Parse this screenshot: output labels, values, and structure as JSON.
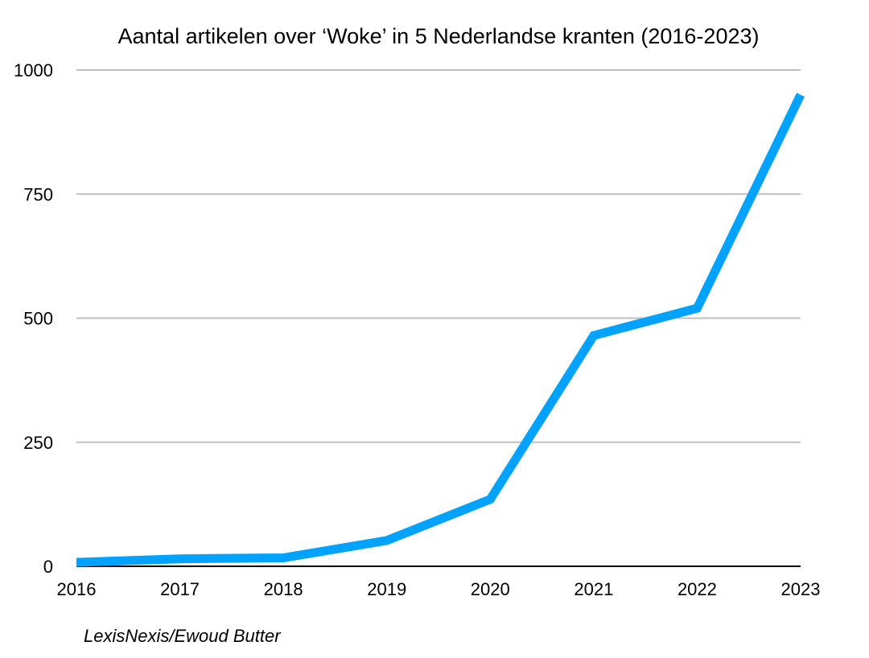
{
  "chart_data": {
    "type": "line",
    "title": "Aantal artikelen over ‘Woke’ in 5 Nederlandse kranten (2016-2023)",
    "xlabel": "",
    "ylabel": "",
    "categories": [
      "2016",
      "2017",
      "2018",
      "2019",
      "2020",
      "2021",
      "2022",
      "2023"
    ],
    "series": [
      {
        "values": [
          8,
          15,
          17,
          52,
          135,
          465,
          520,
          950
        ],
        "color": "#00A2FF"
      }
    ],
    "ylim": [
      0,
      1000
    ],
    "yticks": [
      0,
      250,
      500,
      750,
      1000
    ],
    "grid": true,
    "legend": "none",
    "source": "LexisNexis/Ewoud Butter"
  },
  "colors": {
    "gridline": "#BFBFBF",
    "axis": "#000000"
  }
}
